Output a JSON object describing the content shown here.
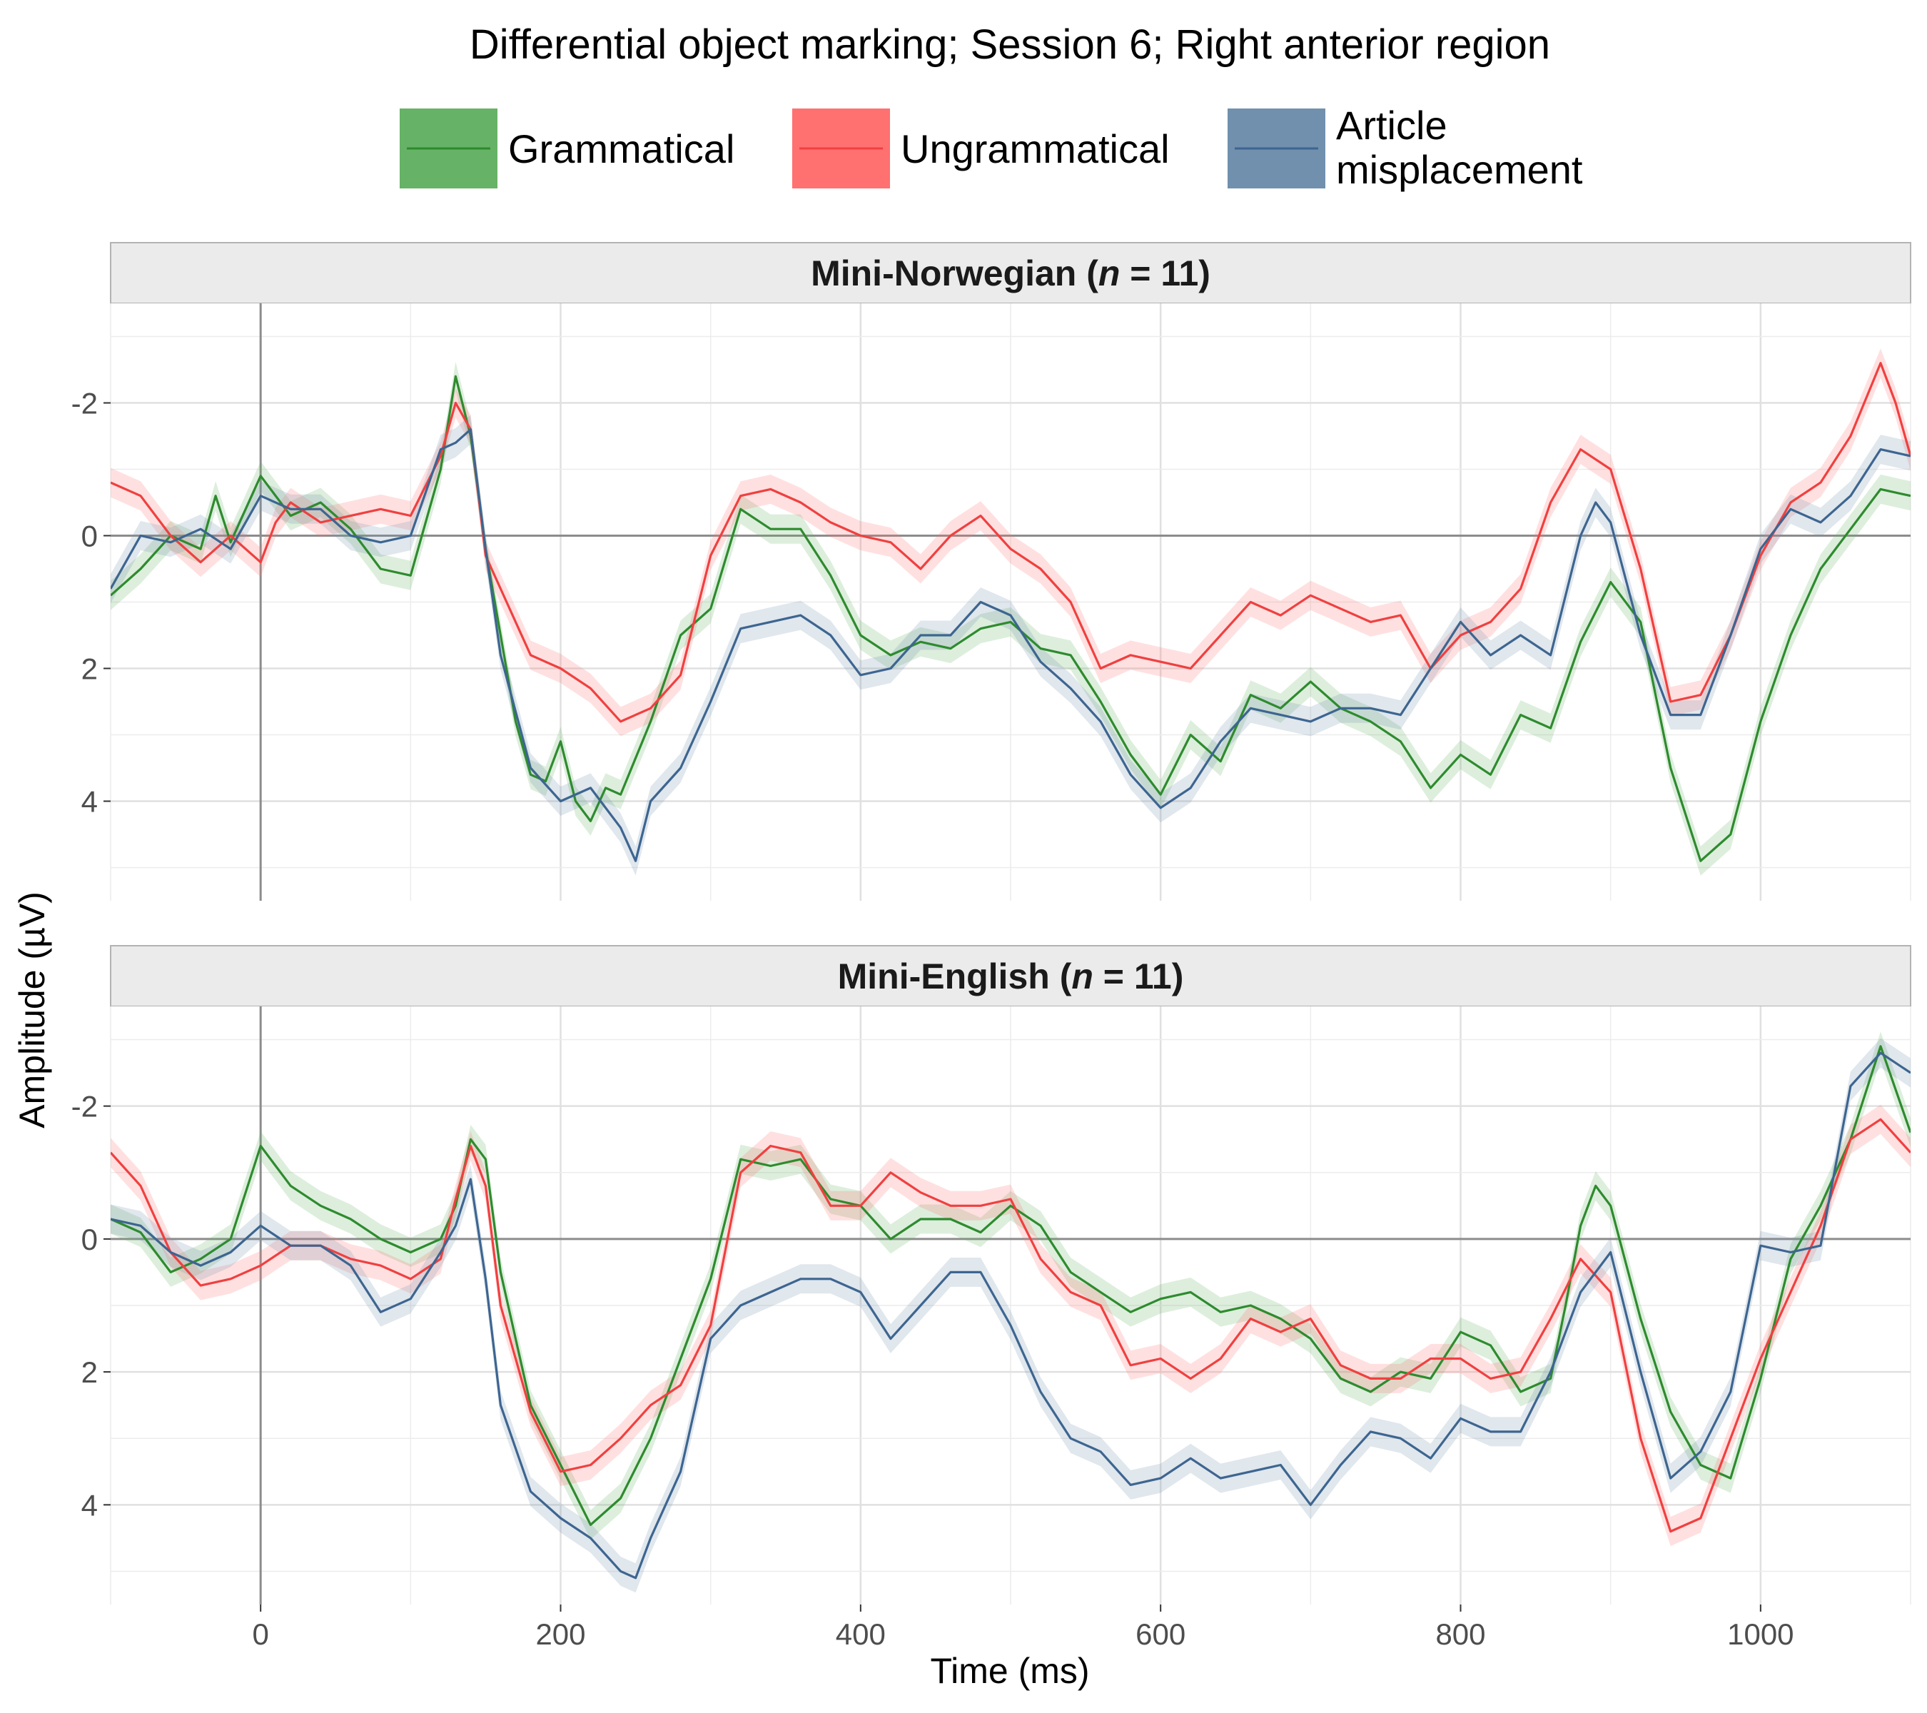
{
  "chart_data": {
    "type": "line",
    "title": "Differential object marking; Session 6; Right anterior region",
    "xlabel": "Time (ms)",
    "ylabel": "Amplitude (µV)",
    "xlim": [
      -100,
      1100
    ],
    "ylim": [
      -3.5,
      5.5
    ],
    "y_reversed": true,
    "xticks": [
      0,
      200,
      400,
      600,
      800,
      1000
    ],
    "xtick_labels": [
      "0",
      "200",
      "400",
      "600",
      "800",
      "1000"
    ],
    "yticks": [
      -2,
      0,
      2,
      4
    ],
    "ytick_labels": [
      "-2",
      "0",
      "2",
      "4"
    ],
    "legend": {
      "position": "top",
      "items": [
        {
          "key": "grammatical",
          "label": "Grammatical",
          "color": "#2e8b2e",
          "fill": "#66b266"
        },
        {
          "key": "ungrammatical",
          "label": "Ungrammatical",
          "color": "#f04040",
          "fill": "#ff7070"
        },
        {
          "key": "article",
          "label": "Article\nmisplacement",
          "color": "#3d6590",
          "fill": "#7090ad"
        }
      ]
    },
    "panels": [
      {
        "strip_prefix": "Mini-Norwegian (",
        "strip_n": "n",
        "strip_suffix": " = 11)",
        "series": [
          {
            "key": "grammatical",
            "name": "Grammatical",
            "x": [
              -100,
              -80,
              -60,
              -40,
              -30,
              -20,
              0,
              20,
              40,
              60,
              80,
              100,
              120,
              130,
              140,
              150,
              160,
              170,
              180,
              190,
              200,
              210,
              220,
              230,
              240,
              260,
              280,
              300,
              320,
              340,
              360,
              380,
              400,
              420,
              440,
              460,
              480,
              500,
              520,
              540,
              560,
              580,
              600,
              620,
              640,
              660,
              680,
              700,
              720,
              740,
              760,
              780,
              800,
              820,
              840,
              860,
              880,
              900,
              920,
              940,
              960,
              980,
              1000,
              1020,
              1040,
              1060,
              1080,
              1100
            ],
            "y": [
              0.9,
              0.5,
              0.0,
              0.2,
              -0.6,
              0.1,
              -0.9,
              -0.3,
              -0.5,
              -0.1,
              0.5,
              0.6,
              -1.0,
              -2.4,
              -1.5,
              0.2,
              1.5,
              2.8,
              3.6,
              3.7,
              3.1,
              4.0,
              4.3,
              3.8,
              3.9,
              2.8,
              1.5,
              1.1,
              -0.4,
              -0.1,
              -0.1,
              0.6,
              1.5,
              1.8,
              1.6,
              1.7,
              1.4,
              1.3,
              1.7,
              1.8,
              2.5,
              3.3,
              3.9,
              3.0,
              3.4,
              2.4,
              2.6,
              2.2,
              2.6,
              2.8,
              3.1,
              3.8,
              3.3,
              3.6,
              2.7,
              2.9,
              1.6,
              0.7,
              1.3,
              3.5,
              4.9,
              4.5,
              2.8,
              1.5,
              0.5,
              -0.1,
              -0.7,
              -0.6
            ]
          },
          {
            "key": "ungrammatical",
            "name": "Ungrammatical",
            "x": [
              -100,
              -80,
              -60,
              -40,
              -20,
              0,
              10,
              20,
              40,
              60,
              80,
              100,
              120,
              130,
              140,
              150,
              160,
              180,
              200,
              220,
              240,
              260,
              280,
              300,
              320,
              340,
              360,
              380,
              400,
              420,
              440,
              460,
              480,
              500,
              520,
              540,
              560,
              580,
              600,
              620,
              640,
              660,
              680,
              700,
              720,
              740,
              760,
              780,
              800,
              820,
              840,
              860,
              880,
              900,
              920,
              940,
              960,
              980,
              1000,
              1020,
              1040,
              1060,
              1080,
              1090,
              1100
            ],
            "y": [
              -0.8,
              -0.6,
              0.0,
              0.4,
              0.0,
              0.4,
              -0.2,
              -0.5,
              -0.2,
              -0.3,
              -0.4,
              -0.3,
              -1.2,
              -2.0,
              -1.6,
              0.3,
              0.8,
              1.8,
              2.0,
              2.3,
              2.8,
              2.6,
              2.1,
              0.3,
              -0.6,
              -0.7,
              -0.5,
              -0.2,
              0.0,
              0.1,
              0.5,
              0.0,
              -0.3,
              0.2,
              0.5,
              1.0,
              2.0,
              1.8,
              1.9,
              2.0,
              1.5,
              1.0,
              1.2,
              0.9,
              1.1,
              1.3,
              1.2,
              2.0,
              1.5,
              1.3,
              0.8,
              -0.5,
              -1.3,
              -1.0,
              0.5,
              2.5,
              2.4,
              1.5,
              0.3,
              -0.5,
              -0.8,
              -1.5,
              -2.6,
              -2.0,
              -1.2
            ]
          },
          {
            "key": "article",
            "name": "Article misplacement",
            "x": [
              -100,
              -80,
              -60,
              -40,
              -20,
              0,
              20,
              40,
              60,
              80,
              100,
              120,
              130,
              140,
              150,
              160,
              180,
              200,
              220,
              240,
              250,
              260,
              280,
              300,
              320,
              340,
              360,
              380,
              400,
              420,
              440,
              460,
              480,
              500,
              520,
              540,
              560,
              580,
              600,
              620,
              640,
              660,
              680,
              700,
              720,
              740,
              760,
              780,
              800,
              820,
              840,
              860,
              880,
              890,
              900,
              920,
              940,
              960,
              980,
              1000,
              1020,
              1040,
              1060,
              1080,
              1100
            ],
            "y": [
              0.8,
              0.0,
              0.1,
              -0.1,
              0.2,
              -0.6,
              -0.4,
              -0.4,
              0.0,
              0.1,
              0.0,
              -1.3,
              -1.4,
              -1.6,
              0.2,
              1.8,
              3.5,
              4.0,
              3.8,
              4.4,
              4.9,
              4.0,
              3.5,
              2.5,
              1.4,
              1.3,
              1.2,
              1.5,
              2.1,
              2.0,
              1.5,
              1.5,
              1.0,
              1.2,
              1.9,
              2.3,
              2.8,
              3.6,
              4.1,
              3.8,
              3.1,
              2.6,
              2.7,
              2.8,
              2.6,
              2.6,
              2.7,
              2.0,
              1.3,
              1.8,
              1.5,
              1.8,
              0.0,
              -0.5,
              -0.2,
              1.5,
              2.7,
              2.7,
              1.5,
              0.2,
              -0.4,
              -0.2,
              -0.6,
              -1.3,
              -1.2
            ]
          }
        ]
      },
      {
        "strip_prefix": "Mini-English (",
        "strip_n": "n",
        "strip_suffix": " = 11)",
        "series": [
          {
            "key": "grammatical",
            "name": "Grammatical",
            "x": [
              -100,
              -80,
              -60,
              -40,
              -20,
              0,
              20,
              40,
              60,
              80,
              100,
              120,
              130,
              140,
              150,
              160,
              180,
              200,
              220,
              240,
              260,
              280,
              300,
              320,
              340,
              360,
              380,
              400,
              420,
              440,
              460,
              480,
              500,
              520,
              540,
              560,
              580,
              600,
              620,
              640,
              660,
              680,
              700,
              720,
              740,
              760,
              780,
              800,
              820,
              840,
              860,
              870,
              880,
              890,
              900,
              920,
              940,
              960,
              980,
              1000,
              1020,
              1040,
              1060,
              1080,
              1100
            ],
            "y": [
              -0.3,
              -0.1,
              0.5,
              0.3,
              0.0,
              -1.4,
              -0.8,
              -0.5,
              -0.3,
              0.0,
              0.2,
              0.0,
              -0.5,
              -1.5,
              -1.2,
              0.5,
              2.5,
              3.4,
              4.3,
              3.9,
              3.0,
              1.8,
              0.6,
              -1.2,
              -1.1,
              -1.2,
              -0.6,
              -0.5,
              0.0,
              -0.3,
              -0.3,
              -0.1,
              -0.5,
              -0.2,
              0.5,
              0.8,
              1.1,
              0.9,
              0.8,
              1.1,
              1.0,
              1.2,
              1.5,
              2.1,
              2.3,
              2.0,
              2.1,
              1.4,
              1.6,
              2.3,
              2.1,
              1.0,
              -0.2,
              -0.8,
              -0.5,
              1.2,
              2.6,
              3.4,
              3.6,
              2.1,
              0.3,
              -0.5,
              -1.5,
              -2.9,
              -1.6
            ]
          },
          {
            "key": "ungrammatical",
            "name": "Ungrammatical",
            "x": [
              -100,
              -80,
              -60,
              -40,
              -20,
              0,
              20,
              40,
              60,
              80,
              100,
              120,
              130,
              140,
              150,
              160,
              180,
              200,
              220,
              240,
              260,
              280,
              300,
              320,
              340,
              360,
              380,
              400,
              420,
              440,
              460,
              480,
              500,
              520,
              540,
              560,
              580,
              600,
              620,
              640,
              660,
              680,
              700,
              720,
              740,
              760,
              780,
              800,
              820,
              840,
              860,
              880,
              900,
              920,
              940,
              960,
              980,
              1000,
              1020,
              1040,
              1060,
              1080,
              1100
            ],
            "y": [
              -1.3,
              -0.8,
              0.2,
              0.7,
              0.6,
              0.4,
              0.1,
              0.1,
              0.3,
              0.4,
              0.6,
              0.3,
              -0.6,
              -1.4,
              -0.8,
              1.0,
              2.6,
              3.5,
              3.4,
              3.0,
              2.5,
              2.2,
              1.3,
              -1.0,
              -1.4,
              -1.3,
              -0.5,
              -0.5,
              -1.0,
              -0.7,
              -0.5,
              -0.5,
              -0.6,
              0.3,
              0.8,
              1.0,
              1.9,
              1.8,
              2.1,
              1.8,
              1.2,
              1.4,
              1.2,
              1.9,
              2.1,
              2.1,
              1.8,
              1.8,
              2.1,
              2.0,
              1.2,
              0.3,
              0.8,
              3.0,
              4.4,
              4.2,
              3.0,
              1.8,
              0.8,
              -0.2,
              -1.5,
              -1.8,
              -1.3
            ]
          },
          {
            "key": "article",
            "name": "Article misplacement",
            "x": [
              -100,
              -80,
              -60,
              -40,
              -20,
              0,
              20,
              40,
              60,
              80,
              100,
              120,
              130,
              140,
              150,
              160,
              180,
              200,
              220,
              240,
              250,
              260,
              280,
              300,
              320,
              340,
              360,
              380,
              400,
              420,
              440,
              460,
              480,
              500,
              520,
              540,
              560,
              580,
              600,
              620,
              640,
              660,
              680,
              700,
              720,
              740,
              760,
              780,
              800,
              820,
              840,
              860,
              880,
              900,
              920,
              940,
              960,
              980,
              1000,
              1020,
              1040,
              1060,
              1080,
              1100
            ],
            "y": [
              -0.3,
              -0.2,
              0.2,
              0.4,
              0.2,
              -0.2,
              0.1,
              0.1,
              0.4,
              1.1,
              0.9,
              0.2,
              -0.2,
              -0.9,
              0.6,
              2.5,
              3.8,
              4.2,
              4.5,
              5.0,
              5.1,
              4.5,
              3.5,
              1.5,
              1.0,
              0.8,
              0.6,
              0.6,
              0.8,
              1.5,
              1.0,
              0.5,
              0.5,
              1.3,
              2.3,
              3.0,
              3.2,
              3.7,
              3.6,
              3.3,
              3.6,
              3.5,
              3.4,
              4.0,
              3.4,
              2.9,
              3.0,
              3.3,
              2.7,
              2.9,
              2.9,
              2.0,
              0.8,
              0.2,
              2.0,
              3.6,
              3.2,
              2.3,
              0.1,
              0.2,
              0.1,
              -2.3,
              -2.8,
              -2.5
            ]
          }
        ]
      }
    ]
  }
}
